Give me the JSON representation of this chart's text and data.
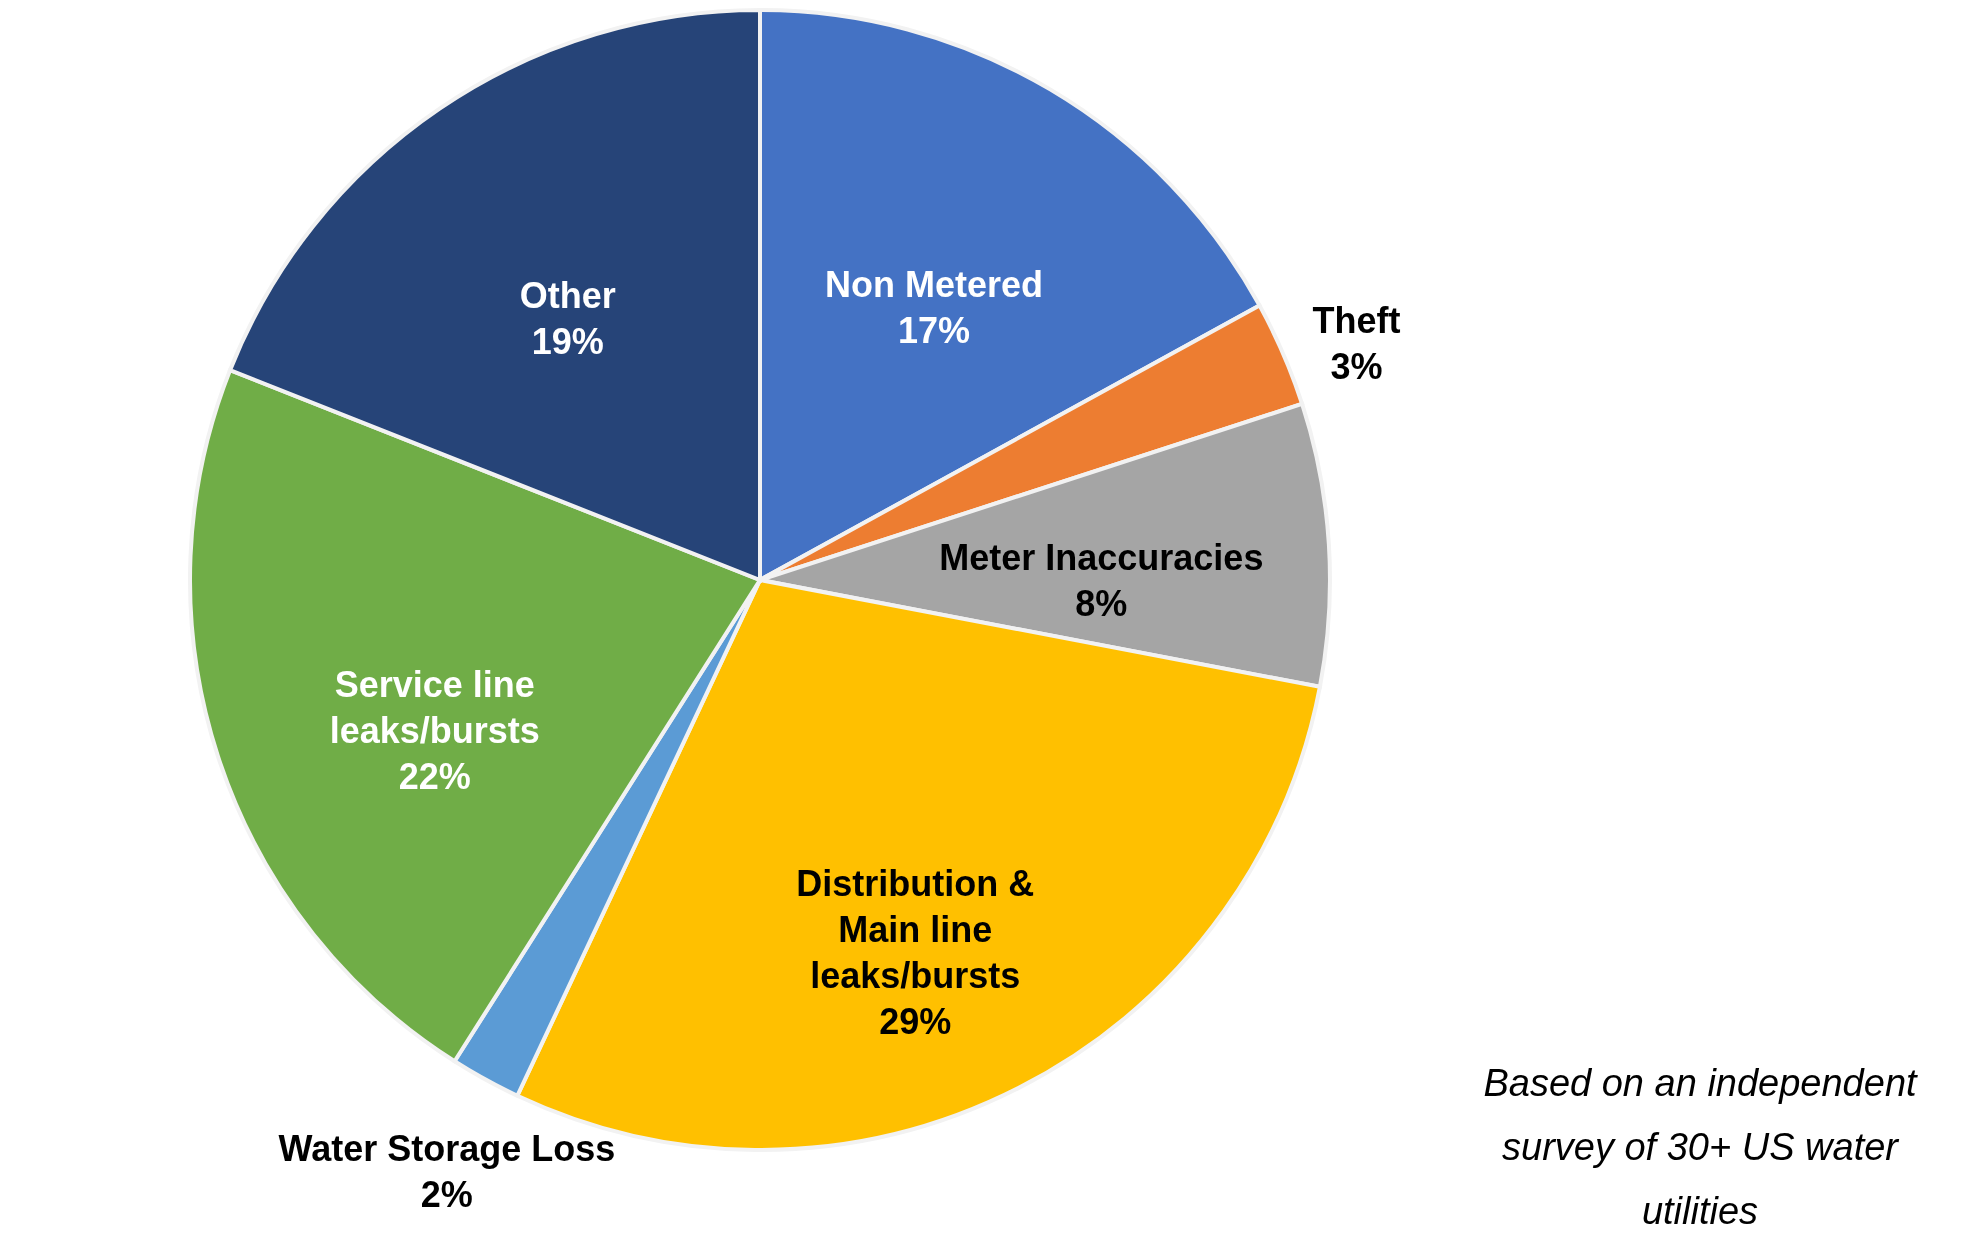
{
  "chart_data": {
    "type": "pie",
    "categories": [
      "Non Metered",
      "Theft",
      "Meter Inaccuracies",
      "Distribution & Main line leaks/bursts",
      "Water Storage Loss",
      "Service line leaks/bursts",
      "Other"
    ],
    "values": [
      17,
      3,
      8,
      29,
      2,
      22,
      19
    ],
    "value_labels": [
      "17%",
      "3%",
      "8%",
      "29%",
      "2%",
      "22%",
      "19%"
    ],
    "colors": [
      "#4472c4",
      "#ed7d31",
      "#a5a5a5",
      "#ffc000",
      "#5b9bd5",
      "#70ad47",
      "#264478"
    ],
    "annotations": [
      "Based on an independent survey of 30+ US water utilities"
    ]
  }
}
